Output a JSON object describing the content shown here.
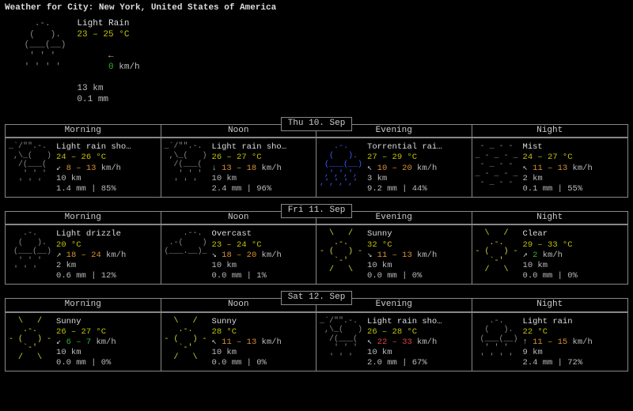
{
  "header": "Weather for City: New York, United States of America",
  "colors": {
    "bg": "#000000",
    "fg": "#bbbbbb",
    "border": "#888888",
    "temp": "#c2c200",
    "green": "#2db52d",
    "red": "#e04040",
    "blue": "#3a5aff",
    "orange": "#d89030",
    "yellow": "#d8d830",
    "grey": "#888888"
  },
  "current": {
    "ascii_kind": "rain",
    "condition": "Light Rain",
    "temp": "23 – 25 °C",
    "wind_arrow": "←",
    "wind_val": "0",
    "wind_color": "green",
    "wind_unit": " km/h",
    "vis": "13 km",
    "precip": "0.1 mm"
  },
  "period_labels": [
    "Morning",
    "Noon",
    "Evening",
    "Night"
  ],
  "days": [
    {
      "title": "Thu 10. Sep",
      "cells": [
        {
          "ascii_kind": "rain-shower",
          "condition": "Light rain sho…",
          "temp": "24 – 26 °C",
          "wind_arrow": "↙",
          "wind_range": "8 – 13",
          "wind_color": "orange",
          "wind_unit": " km/h",
          "vis": "10 km",
          "precip": "1.4 mm | 85%"
        },
        {
          "ascii_kind": "rain-shower",
          "condition": "Light rain sho…",
          "temp": "26 – 27 °C",
          "wind_arrow": "↓",
          "wind_range": "13 – 18",
          "wind_color": "orange",
          "wind_unit": " km/h",
          "vis": "10 km",
          "precip": "2.4 mm | 96%"
        },
        {
          "ascii_kind": "heavy-rain",
          "condition": "Torrential rai…",
          "temp": "27 – 29 °C",
          "wind_arrow": "↖",
          "wind_range": "10 – 20",
          "wind_color": "orange",
          "wind_unit": " km/h",
          "vis": "3 km",
          "precip": "9.2 mm | 44%"
        },
        {
          "ascii_kind": "mist",
          "condition": "Mist",
          "temp": "24 – 27 °C",
          "wind_arrow": "↖",
          "wind_range": "11 – 13",
          "wind_color": "orange",
          "wind_unit": " km/h",
          "vis": "2 km",
          "precip": "0.1 mm | 55%"
        }
      ]
    },
    {
      "title": "Fri 11. Sep",
      "cells": [
        {
          "ascii_kind": "drizzle",
          "condition": "Light drizzle",
          "temp": "20 °C",
          "wind_arrow": "↗",
          "wind_range": "18 – 24",
          "wind_color": "orange",
          "wind_unit": " km/h",
          "vis": "2 km",
          "precip": "0.6 mm | 12%"
        },
        {
          "ascii_kind": "overcast",
          "condition": "Overcast",
          "temp": "23 – 24 °C",
          "wind_arrow": "↘",
          "wind_range": "18 – 20",
          "wind_color": "orange",
          "wind_unit": " km/h",
          "vis": "10 km",
          "precip": "0.0 mm | 1%"
        },
        {
          "ascii_kind": "sunny",
          "condition": "Sunny",
          "temp": "32 °C",
          "wind_arrow": "↘",
          "wind_range": "11 – 13",
          "wind_color": "orange",
          "wind_unit": " km/h",
          "vis": "10 km",
          "precip": "0.0 mm | 0%"
        },
        {
          "ascii_kind": "sunny",
          "condition": "Clear",
          "temp": "29 – 33 °C",
          "wind_arrow": "↗",
          "wind_range": "2",
          "wind_color": "green",
          "wind_unit": " km/h",
          "vis": "10 km",
          "precip": "0.0 mm | 0%"
        }
      ]
    },
    {
      "title": "Sat 12. Sep",
      "cells": [
        {
          "ascii_kind": "sunny",
          "condition": "Sunny",
          "temp": "26 – 27 °C",
          "wind_arrow": "↙",
          "wind_range": "6 – 7",
          "wind_color": "green",
          "wind_unit": " km/h",
          "vis": "10 km",
          "precip": "0.0 mm | 0%"
        },
        {
          "ascii_kind": "sunny",
          "condition": "Sunny",
          "temp": "28 °C",
          "wind_arrow": "↖",
          "wind_range": "11 – 13",
          "wind_color": "orange",
          "wind_unit": " km/h",
          "vis": "10 km",
          "precip": "0.0 mm | 0%"
        },
        {
          "ascii_kind": "rain-shower",
          "condition": "Light rain sho…",
          "temp": "26 – 28 °C",
          "wind_arrow": "↖",
          "wind_range": "22 – 33",
          "wind_color": "red",
          "wind_unit": " km/h",
          "vis": "10 km",
          "precip": "2.0 mm | 67%"
        },
        {
          "ascii_kind": "rain",
          "condition": "Light rain",
          "temp": "22 °C",
          "wind_arrow": "↑",
          "wind_range": "11 – 15",
          "wind_color": "orange",
          "wind_unit": " km/h",
          "vis": "9 km",
          "precip": "2.4 mm | 72%"
        }
      ]
    }
  ],
  "ascii_art": {
    "rain": "   .-.   \n  (   ). \n (___(__)\n  ' ' '  \n ' ' ' ' ",
    "drizzle": "   .-.   \n  (   ). \n (___(__)\n  ' ' '  \n ' ' '   ",
    "rain-shower": "_`/\"\".-. \n ,\\_(   )\n  /(___( \n   ' ' ' \n  ' ' '  ",
    "heavy-rain": "   .-.   \n  (   ). \n (___(__)\n ,',',', \n,',',','",
    "mist": " - _ - - \n_ - _ - _\n - _ - - \n_ - _ - _\n - _ - - ",
    "overcast": "    .--. \n .-(    )\n(___.__)_\n         \n         ",
    "sunny": "  \\   /  \n   .-.   \n- (   ) -\n   `-'   \n  /   \\  "
  },
  "ascii_color": {
    "rain": "grey",
    "drizzle": "grey",
    "rain-shower": "grey",
    "heavy-rain": "blue",
    "mist": "grey",
    "overcast": "grey",
    "sunny": "yellow"
  }
}
